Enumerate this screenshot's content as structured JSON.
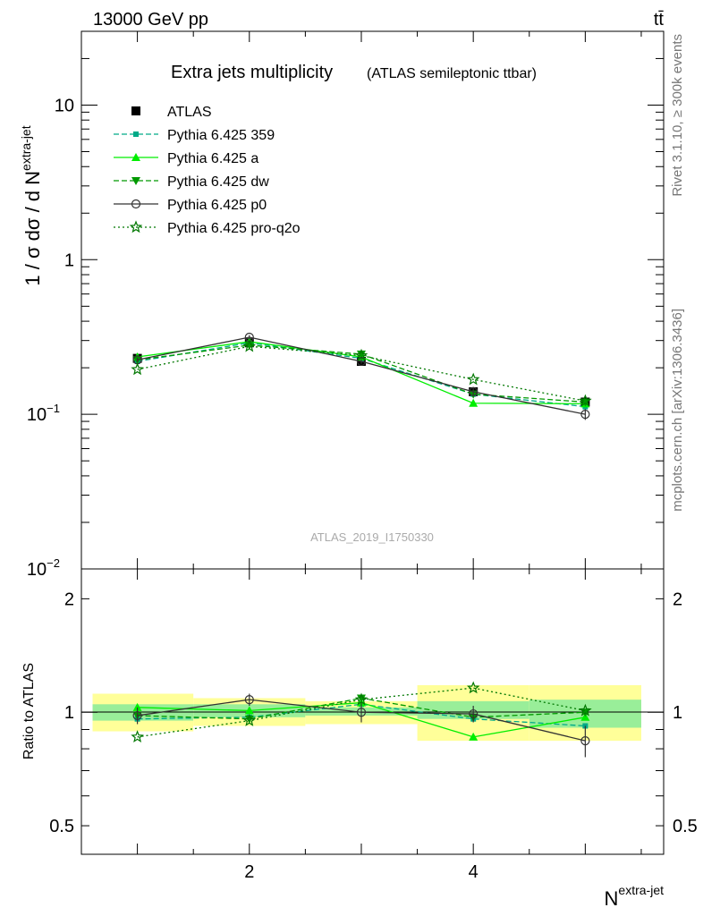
{
  "header": {
    "left": "13000 GeV pp",
    "right": "tt̄"
  },
  "side_labels": {
    "rivet": "Rivet 3.1.10, ≥ 300k events",
    "mcplots": "mcplots.cern.ch [arXiv:1306.3436]"
  },
  "watermark": "ATLAS_2019_I1750330",
  "chart_data": [
    {
      "type": "line",
      "panel": "main",
      "title": "Extra jets multiplicity",
      "subtitle": "(ATLAS semileptonic ttbar)",
      "xlabel": "N",
      "xlabel_sup": "extra-jet",
      "ylabel": "1 / σ dσ / d N",
      "ylabel_sup": "extra-jet",
      "yscale": "log",
      "xlim": [
        0.5,
        5.7
      ],
      "ylim": [
        0.01,
        30
      ],
      "x_ticks": [
        2,
        4
      ],
      "y_ticks": [
        {
          "value": 10,
          "label": "10"
        },
        {
          "value": 1,
          "label": "1"
        },
        {
          "value": 0.1,
          "label": "10",
          "exp": "−1"
        },
        {
          "value": 0.01,
          "label": "10",
          "exp": "−2"
        }
      ],
      "legend_position": "top-left",
      "x": [
        1,
        2,
        3,
        4,
        5
      ],
      "series": [
        {
          "name": "ATLAS",
          "color": "#000000",
          "marker": "square",
          "line": "none",
          "values": [
            0.23,
            0.29,
            0.22,
            0.14,
            0.12
          ],
          "errors": [
            0.01,
            0.012,
            0.008,
            0.01,
            0.009
          ]
        },
        {
          "name": "Pythia 6.425 359",
          "color": "#00aa88",
          "marker": "small-square",
          "line": "dashed",
          "values": [
            0.22,
            0.29,
            0.23,
            0.135,
            0.112
          ]
        },
        {
          "name": "Pythia 6.425 a",
          "color": "#00ee00",
          "marker": "triangle-up",
          "line": "solid",
          "values": [
            0.235,
            0.295,
            0.235,
            0.118,
            0.117
          ]
        },
        {
          "name": "Pythia 6.425 dw",
          "color": "#009900",
          "marker": "triangle-down",
          "line": "dashed",
          "values": [
            0.225,
            0.28,
            0.245,
            0.135,
            0.12
          ]
        },
        {
          "name": "Pythia 6.425 p0",
          "color": "#333333",
          "marker": "open-circle",
          "line": "solid",
          "values": [
            0.225,
            0.315,
            0.22,
            0.14,
            0.1
          ],
          "errors": [
            0.008,
            0.01,
            0.008,
            0.008,
            0.008
          ]
        },
        {
          "name": "Pythia 6.425 pro-q2o",
          "color": "#007700",
          "marker": "open-star",
          "line": "dotted",
          "values": [
            0.195,
            0.275,
            0.24,
            0.168,
            0.122
          ]
        }
      ]
    },
    {
      "type": "line",
      "panel": "ratio",
      "ylabel": "Ratio to ATLAS",
      "yscale": "log",
      "xlim": [
        0.5,
        5.7
      ],
      "ylim": [
        0.42,
        2.4
      ],
      "y_ticks": [
        {
          "value": 2,
          "label": "2"
        },
        {
          "value": 1,
          "label": "1"
        },
        {
          "value": 0.5,
          "label": "0.5"
        }
      ],
      "bands": [
        {
          "x_range": [
            0.6,
            1.5
          ],
          "inner": [
            0.95,
            1.05
          ],
          "outer": [
            0.89,
            1.12
          ]
        },
        {
          "x_range": [
            1.5,
            2.5
          ],
          "inner": [
            0.97,
            1.05
          ],
          "outer": [
            0.92,
            1.09
          ]
        },
        {
          "x_range": [
            2.5,
            3.5
          ],
          "inner": [
            0.98,
            1.03
          ],
          "outer": [
            0.93,
            1.07
          ]
        },
        {
          "x_range": [
            3.5,
            4.5
          ],
          "inner": [
            0.96,
            1.07
          ],
          "outer": [
            0.84,
            1.18
          ]
        },
        {
          "x_range": [
            4.5,
            5.5
          ],
          "inner": [
            0.91,
            1.08
          ],
          "outer": [
            0.84,
            1.18
          ]
        }
      ],
      "x": [
        1,
        2,
        3,
        4,
        5
      ],
      "series": [
        {
          "name": "Pythia 6.425 359",
          "values": [
            0.96,
            0.97,
            1.05,
            0.96,
            0.92
          ]
        },
        {
          "name": "Pythia 6.425 a",
          "values": [
            1.03,
            1.01,
            1.06,
            0.86,
            0.97
          ]
        },
        {
          "name": "Pythia 6.425 dw",
          "values": [
            0.98,
            0.96,
            1.09,
            0.97,
            1.0
          ]
        },
        {
          "name": "Pythia 6.425 p0",
          "values": [
            0.98,
            1.08,
            1.0,
            0.99,
            0.84
          ],
          "errors": [
            0.05,
            0.04,
            0.06,
            0.05,
            0.08
          ]
        },
        {
          "name": "Pythia 6.425 pro-q2o",
          "values": [
            0.86,
            0.95,
            1.08,
            1.16,
            1.01
          ]
        }
      ]
    }
  ]
}
